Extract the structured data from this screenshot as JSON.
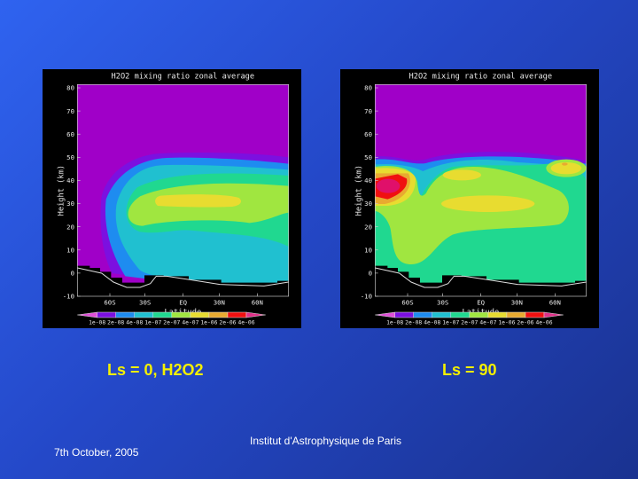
{
  "slide": {
    "caption_left": "Ls = 0, H2O2",
    "caption_right": "Ls = 90",
    "date": "7th October, 2005",
    "institute": "Institut d'Astrophysique de Paris"
  },
  "chart_data": [
    {
      "type": "heatmap",
      "title": "H2O2 mixing ratio zonal average",
      "xlabel": "Latitude",
      "ylabel": "Height (km)",
      "x_ticks": [
        "60S",
        "30S",
        "EQ",
        "30N",
        "60N"
      ],
      "y_ticks": [
        -10,
        0,
        10,
        20,
        30,
        40,
        50,
        60,
        70,
        80
      ],
      "ylim": [
        -10,
        80
      ],
      "colorbar_levels": [
        "1e-08",
        "2e-08",
        "4e-08",
        "1e-07",
        "2e-07",
        "4e-07",
        "1e-06",
        "2e-06",
        "4e-06"
      ],
      "colorbar_colors": [
        "#e050d8",
        "#7c10e0",
        "#1e8cf0",
        "#20c0d0",
        "#20d890",
        "#a0e640",
        "#e8dc30",
        "#e8aa30",
        "#f01010",
        "#e03088"
      ]
    },
    {
      "type": "heatmap",
      "title": "H2O2 mixing ratio zonal average",
      "xlabel": "Latitude",
      "ylabel": "Height (km)",
      "x_ticks": [
        "60S",
        "30S",
        "EQ",
        "30N",
        "60N"
      ],
      "y_ticks": [
        -10,
        0,
        10,
        20,
        30,
        40,
        50,
        60,
        70,
        80
      ],
      "ylim": [
        -10,
        80
      ],
      "colorbar_levels": [
        "1e-08",
        "2e-08",
        "4e-08",
        "1e-07",
        "2e-07",
        "4e-07",
        "1e-06",
        "2e-06",
        "4e-06"
      ],
      "colorbar_colors": [
        "#e050d8",
        "#7c10e0",
        "#1e8cf0",
        "#20c0d0",
        "#20d890",
        "#a0e640",
        "#e8dc30",
        "#e8aa30",
        "#f01010",
        "#e03088"
      ]
    }
  ]
}
